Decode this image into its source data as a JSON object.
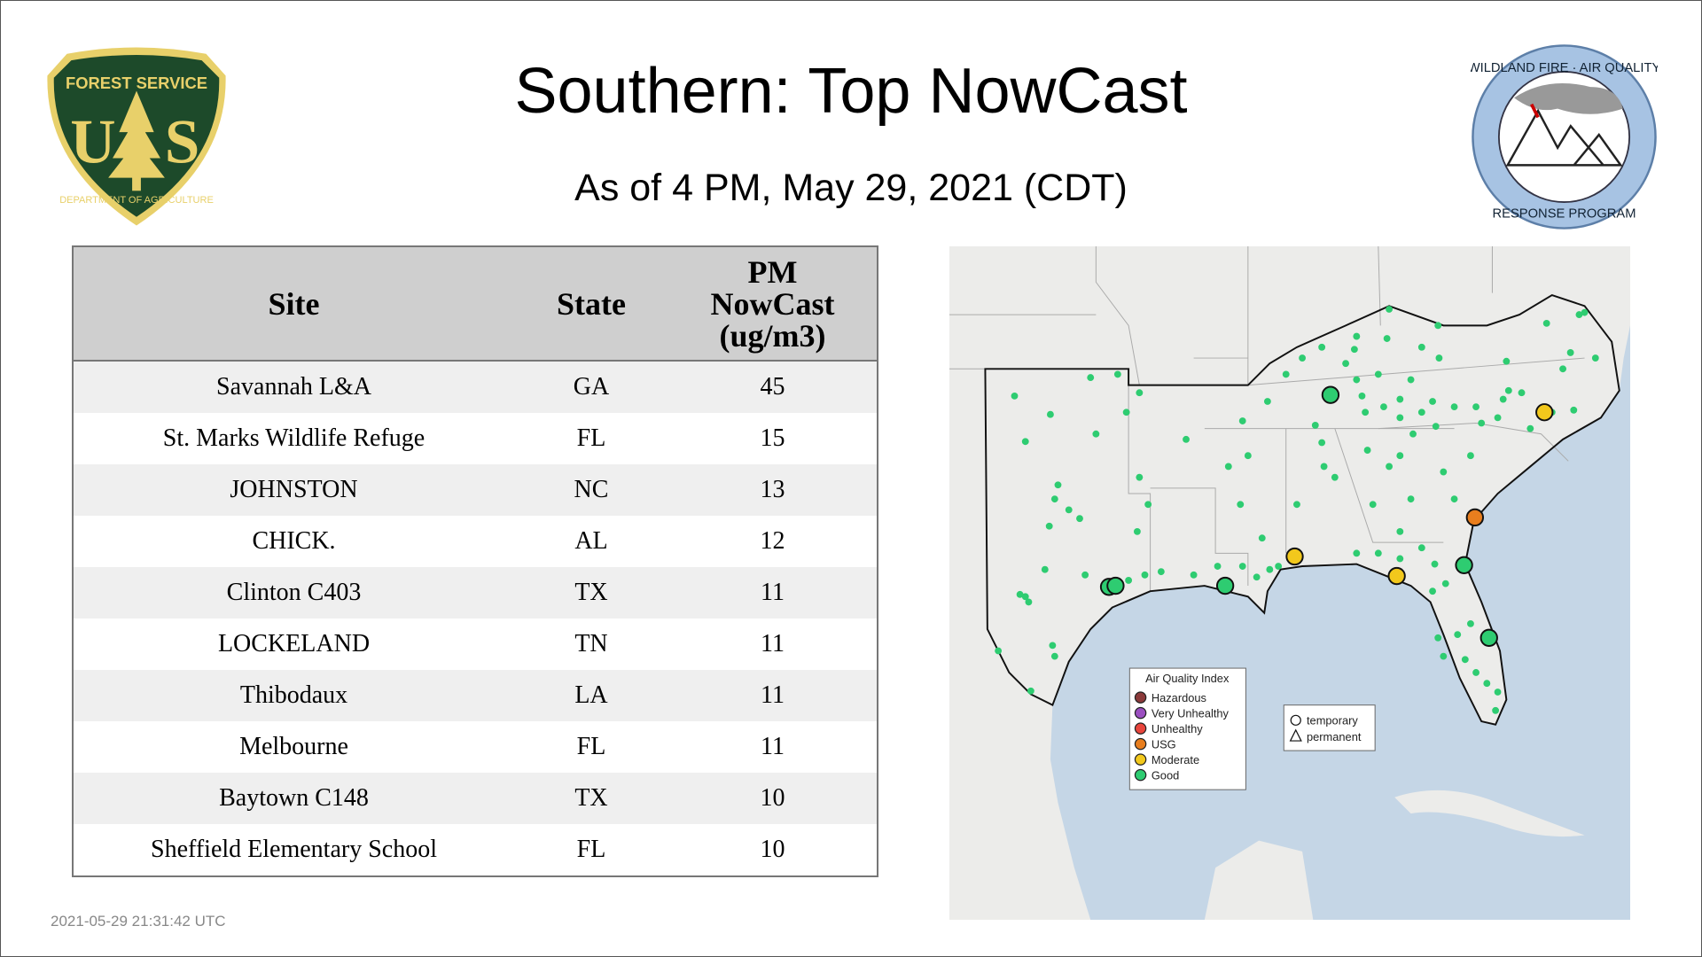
{
  "header": {
    "title": "Southern: Top NowCast",
    "subtitle": "As of  4 PM, May 29, 2021 (CDT)"
  },
  "logos": {
    "forest_service": {
      "top": "FOREST SERVICE",
      "letters": "U S",
      "bottom": "DEPARTMENT OF AGRICULTURE"
    },
    "wildland": {
      "top": "WILDLAND FIRE · AIR QUALITY",
      "bottom": "RESPONSE PROGRAM"
    }
  },
  "table": {
    "headers": [
      "Site",
      "State",
      "PM NowCast (ug/m3)"
    ],
    "rows": [
      {
        "site": "Savannah L&A",
        "state": "GA",
        "value": "45"
      },
      {
        "site": "St. Marks Wildlife Refuge",
        "state": "FL",
        "value": "15"
      },
      {
        "site": "JOHNSTON",
        "state": "NC",
        "value": "13"
      },
      {
        "site": "CHICK.",
        "state": "AL",
        "value": "12"
      },
      {
        "site": "Clinton C403",
        "state": "TX",
        "value": "11"
      },
      {
        "site": "LOCKELAND",
        "state": "TN",
        "value": "11"
      },
      {
        "site": "Thibodaux",
        "state": "LA",
        "value": "11"
      },
      {
        "site": "Melbourne",
        "state": "FL",
        "value": "11"
      },
      {
        "site": "Baytown C148",
        "state": "TX",
        "value": "10"
      },
      {
        "site": "Sheffield Elementary School",
        "state": "FL",
        "value": "10"
      }
    ]
  },
  "map": {
    "legend": {
      "title": "Air Quality Index",
      "items": [
        {
          "label": "Hazardous",
          "color": "#8b3a3a"
        },
        {
          "label": "Very Unhealthy",
          "color": "#9b4fc0"
        },
        {
          "label": "Unhealthy",
          "color": "#e8453c"
        },
        {
          "label": "USG",
          "color": "#e87e1e"
        },
        {
          "label": "Moderate",
          "color": "#f2c81c"
        },
        {
          "label": "Good",
          "color": "#2ecc71"
        }
      ]
    },
    "shape_legend": {
      "temporary": "temporary",
      "permanent": "permanent"
    },
    "colors": {
      "water": "#c5d6e6",
      "land": "#ececea",
      "good": "#2ecc71"
    }
  },
  "footer": {
    "timestamp": "2021-05-29 21:31:42 UTC"
  }
}
